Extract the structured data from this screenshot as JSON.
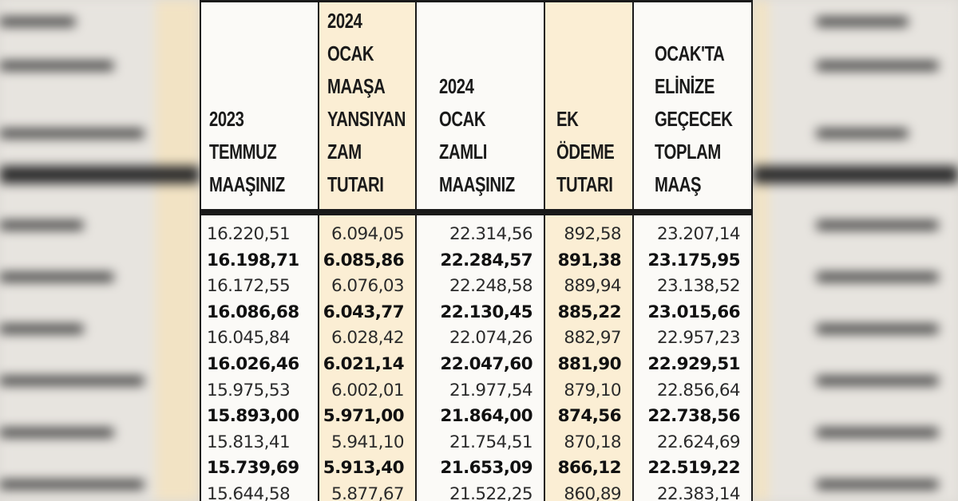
{
  "columns": [
    {
      "header": "2023\nTEMMUZ\nMAAŞINIZ"
    },
    {
      "header": "2024\nOCAK\nMAAŞA\nYANSIYAN\nZAM\nTUTARI"
    },
    {
      "header": "2024\nOCAK\nZAMLI\nMAAŞINIZ"
    },
    {
      "header": "EK\nÖDEME\nTUTARI"
    },
    {
      "header": "OCAK'TA\nELİNİZE\nGEÇECEK\nTOPLAM\nMAAŞ"
    }
  ],
  "rows": [
    [
      "16.220,51",
      "6.094,05",
      "22.314,56",
      "892,58",
      "23.207,14"
    ],
    [
      "16.198,71",
      "6.085,86",
      "22.284,57",
      "891,38",
      "23.175,95"
    ],
    [
      "16.172,55",
      "6.076,03",
      "22.248,58",
      "889,94",
      "23.138,52"
    ],
    [
      "16.086,68",
      "6.043,77",
      "22.130,45",
      "885,22",
      "23.015,66"
    ],
    [
      "16.045,84",
      "6.028,42",
      "22.074,26",
      "882,97",
      "22.957,23"
    ],
    [
      "16.026,46",
      "6.021,14",
      "22.047,60",
      "881,90",
      "22.929,51"
    ],
    [
      "15.975,53",
      "6.002,01",
      "21.977,54",
      "879,10",
      "22.856,64"
    ],
    [
      "15.893,00",
      "5.971,00",
      "21.864,00",
      "874,56",
      "22.738,56"
    ],
    [
      "15.813,41",
      "5.941,10",
      "21.754,51",
      "870,18",
      "22.624,69"
    ],
    [
      "15.739,69",
      "5.913,40",
      "21.653,09",
      "866,12",
      "22.519,22"
    ],
    [
      "15.644,58",
      "5.877,67",
      "21.522,25",
      "860,89",
      "22.383,14"
    ]
  ],
  "background_left": [
    "",
    "",
    "",
    "",
    "",
    "",
    "",
    "",
    ""
  ],
  "background_right": [
    "",
    "",
    "",
    "",
    "",
    "",
    "",
    "",
    ""
  ],
  "colors": {
    "tint": "#fbeed4",
    "rule": "#1a1a1a",
    "paper": "#fbfaf7"
  }
}
